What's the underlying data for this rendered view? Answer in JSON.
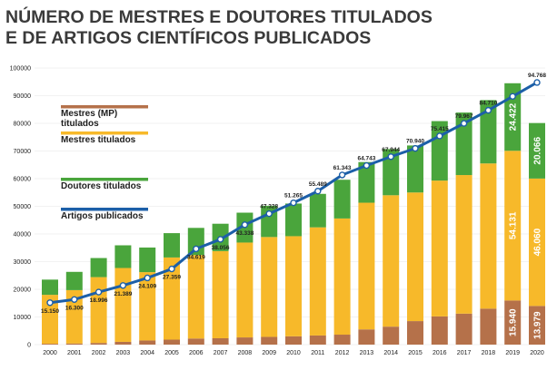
{
  "title_line1": "NÚMERO DE MESTRES E DOUTORES TITULADOS",
  "title_line2": "E DE ARTIGOS CIENTÍFICOS PUBLICADOS",
  "colors": {
    "mestres_mp": "#b5714a",
    "mestres": "#f7b92a",
    "doutores": "#4aa53c",
    "artigos": "#1c5fa8",
    "title": "#3a3a3a"
  },
  "chart_data": {
    "type": "bar",
    "stacked": true,
    "title": "NÚMERO DE MESTRES E DOUTORES TITULADOS E DE ARTIGOS CIENTÍFICOS PUBLICADOS",
    "categories": [
      "2000",
      "2001",
      "2002",
      "2003",
      "2004",
      "2005",
      "2006",
      "2007",
      "2008",
      "2009",
      "2010",
      "2011",
      "2012",
      "2013",
      "2014",
      "2015",
      "2016",
      "2017",
      "2018",
      "2019",
      "2020"
    ],
    "y_ticks": [
      "0",
      "10000",
      "20000",
      "30000",
      "40000",
      "50000",
      "60000",
      "70000",
      "80000",
      "90000",
      "100000"
    ],
    "ylim": [
      0,
      100000
    ],
    "series": [
      {
        "name": "Mestres (MP) titulados",
        "key": "mestres_mp",
        "values": [
          300,
          400,
          600,
          1000,
          1500,
          1800,
          2200,
          2300,
          2600,
          2800,
          3000,
          3300,
          3600,
          5500,
          6500,
          8500,
          10200,
          11200,
          13000,
          15940,
          13979
        ]
      },
      {
        "name": "Mestres titulados",
        "key": "mestres",
        "values": [
          17700,
          19300,
          23800,
          26700,
          24700,
          29700,
          30200,
          31500,
          34300,
          36100,
          36200,
          39100,
          42000,
          45800,
          47500,
          46500,
          49100,
          50100,
          52500,
          54131,
          46060
        ]
      },
      {
        "name": "Doutores titulados",
        "key": "doutores",
        "values": [
          5500,
          6600,
          6900,
          8200,
          8900,
          8800,
          9800,
          9900,
          10800,
          11300,
          11800,
          12100,
          14000,
          14700,
          16700,
          17000,
          21500,
          22600,
          22900,
          24422,
          20066
        ]
      }
    ],
    "line": {
      "name": "Artigos publicados",
      "key": "artigos",
      "values": [
        15150,
        16300,
        18996,
        21389,
        24109,
        27359,
        34619,
        38056,
        43338,
        47328,
        51265,
        55489,
        61343,
        64743,
        67944,
        70940,
        75415,
        79967,
        84710,
        null,
        94768
      ],
      "labels": [
        "15.150",
        "16.300",
        "18.996",
        "21.389",
        "24.109",
        "27.359",
        "34.619",
        "38.056",
        "43.338",
        "47.328",
        "51.265",
        "55.489",
        "61.343",
        "64.743",
        "67.944",
        "70.940",
        "75.415",
        "79.967",
        "84.710",
        "",
        "94.768"
      ]
    },
    "bar_value_labels": [
      {
        "year": "2019",
        "mestres_mp": "15.940",
        "mestres": "54.131",
        "doutores": "24.422"
      },
      {
        "year": "2020",
        "mestres_mp": "13.979",
        "mestres": "46.060",
        "doutores": "20.066"
      }
    ],
    "legend": [
      "Mestres (MP) titulados",
      "Mestres titulados",
      "Doutores titulados",
      "Artigos publicados"
    ],
    "legend_position": "left"
  }
}
